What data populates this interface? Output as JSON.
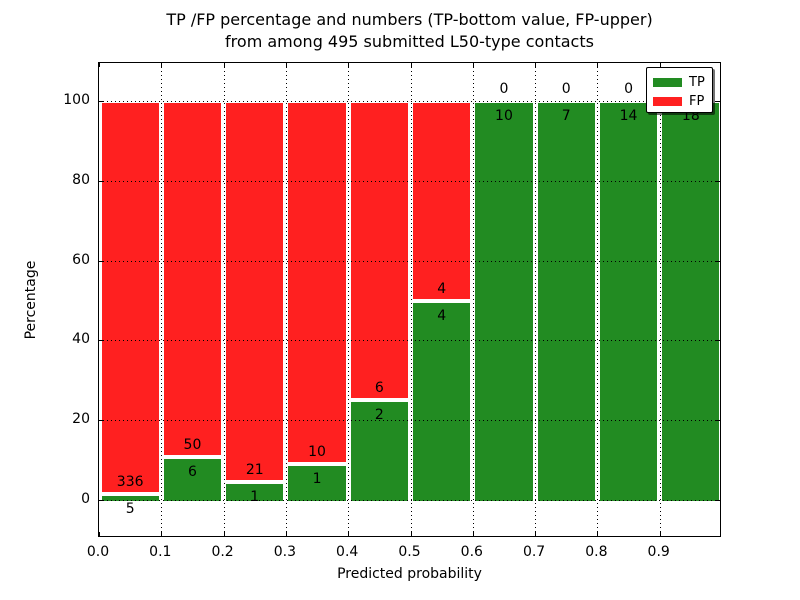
{
  "title": {
    "line1": "TP /FP percentage and numbers (TP-bottom value, FP-upper)",
    "line2": "from among 495 submitted L50-type contacts"
  },
  "axes": {
    "xlabel": "Predicted probability",
    "ylabel": "Percentage",
    "x_tick_labels": [
      "0.0",
      "0.1",
      "0.2",
      "0.3",
      "0.4",
      "0.5",
      "0.6",
      "0.7",
      "0.8",
      "0.9"
    ],
    "x_tick_values": [
      0.0,
      0.1,
      0.2,
      0.3,
      0.4,
      0.5,
      0.6,
      0.7,
      0.8,
      0.9
    ],
    "y_tick_labels": [
      "0",
      "20",
      "40",
      "60",
      "80",
      "100"
    ],
    "y_tick_values": [
      0,
      20,
      40,
      60,
      80,
      100
    ],
    "xlim": [
      0.0,
      1.0
    ],
    "ylim": [
      -9.5,
      109.5
    ],
    "grid_style": "dotted"
  },
  "legend": {
    "position": "upper-right",
    "items": [
      {
        "label": "TP",
        "color": "#228b22"
      },
      {
        "label": "FP",
        "color": "#ff2020"
      }
    ]
  },
  "chart_data": {
    "type": "bar",
    "stacked": true,
    "normalized_to_percent": 100,
    "title": "TP /FP percentage and numbers (TP-bottom value, FP-upper) from among 495 submitted L50-type contacts",
    "xlabel": "Predicted probability",
    "ylabel": "Percentage",
    "total_contacts": 495,
    "bin_edges": [
      0.0,
      0.1,
      0.2,
      0.3,
      0.4,
      0.5,
      0.6,
      0.7,
      0.8,
      0.9,
      1.0
    ],
    "series": [
      {
        "name": "TP",
        "color": "#228b22",
        "counts": [
          5,
          6,
          1,
          1,
          2,
          4,
          10,
          7,
          14,
          18
        ]
      },
      {
        "name": "FP",
        "color": "#ff2020",
        "counts": [
          336,
          50,
          21,
          10,
          6,
          4,
          0,
          0,
          0,
          0
        ]
      }
    ],
    "tp_percent_of_bin": [
      1.47,
      10.71,
      4.55,
      9.09,
      25.0,
      50.0,
      100.0,
      100.0,
      100.0,
      100.0
    ]
  }
}
